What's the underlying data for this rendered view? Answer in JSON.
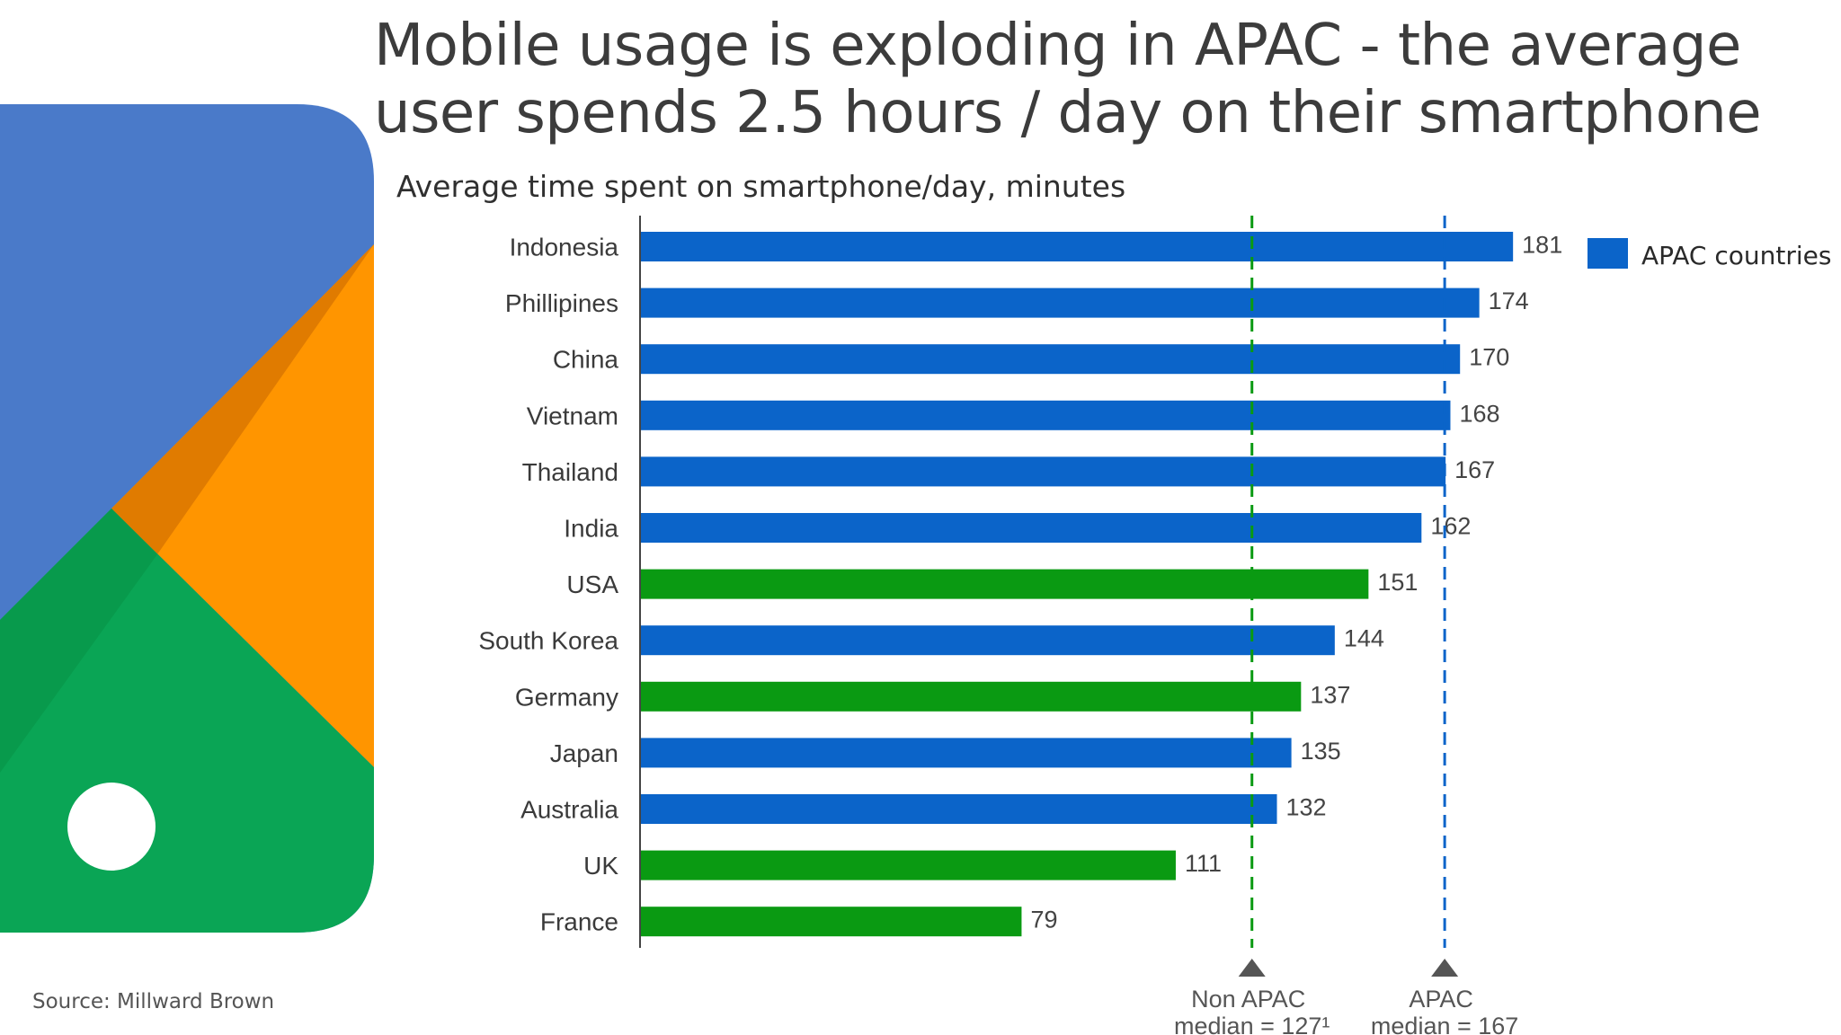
{
  "page": {
    "title": "Mobile usage is exploding in APAC - the average user spends 2.5 hours / day on their smartphone",
    "source": "Source: Millward Brown"
  },
  "colors": {
    "apac": "#0b64c9",
    "non_apac": "#0a9a12",
    "decor_blue": "#4a7ac9",
    "decor_orange": "#ff9500",
    "decor_dark_orange": "#e07b00",
    "decor_green": "#0aa555",
    "decor_dark_green": "#089a4c"
  },
  "chart_data": {
    "type": "bar",
    "orientation": "horizontal",
    "title": "Average time spent on smartphone/day, minutes",
    "categories": [
      "Indonesia",
      "Phillipines",
      "China",
      "Vietnam",
      "Thailand",
      "India",
      "USA",
      "South Korea",
      "Germany",
      "Japan",
      "Australia",
      "UK",
      "France"
    ],
    "values": [
      181,
      174,
      170,
      168,
      167,
      162,
      151,
      144,
      137,
      135,
      132,
      111,
      79
    ],
    "apac": [
      true,
      true,
      true,
      true,
      true,
      true,
      false,
      true,
      false,
      true,
      true,
      false,
      false
    ],
    "xlim": [
      0,
      200
    ],
    "legend": {
      "label": "APAC countries",
      "position": "top-right"
    },
    "reference_lines": [
      {
        "name": "Non APAC median",
        "value": 127,
        "line1": "Non APAC",
        "line2": "median = 127¹",
        "color": "#0a9a12"
      },
      {
        "name": "APAC median",
        "value": 167,
        "line1": "APAC",
        "line2": "median = 167",
        "color": "#0b64c9"
      }
    ]
  }
}
